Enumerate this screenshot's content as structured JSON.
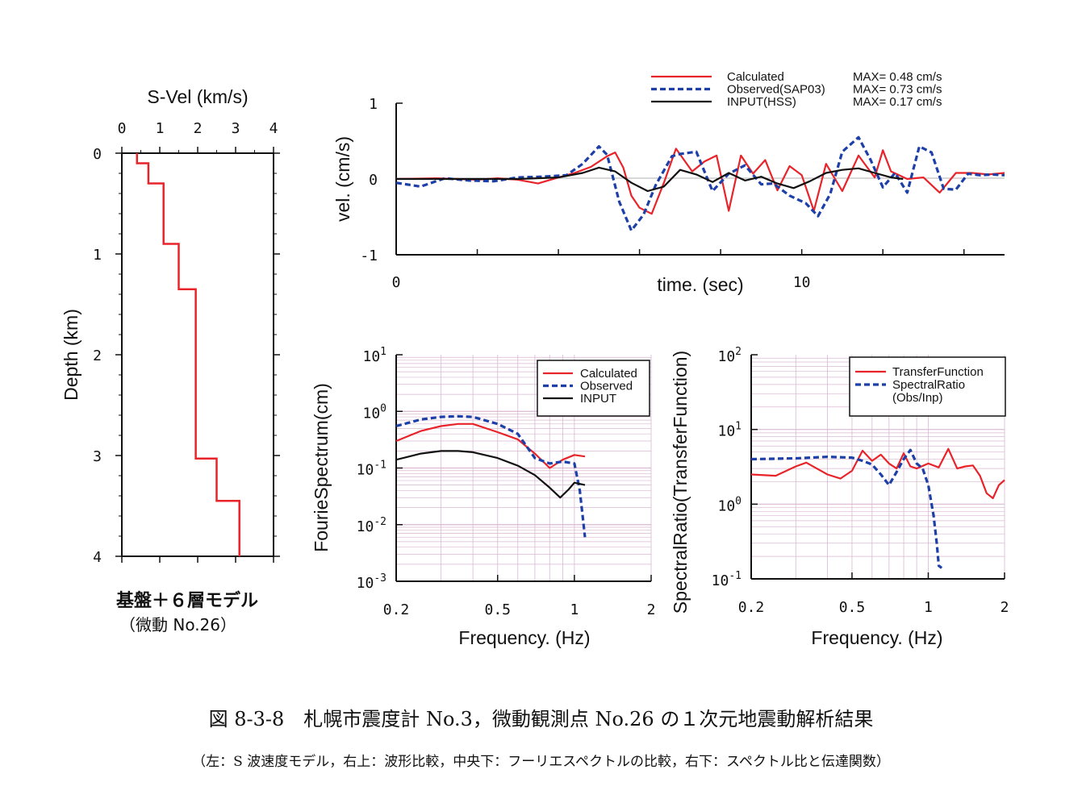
{
  "caption": {
    "main": "図 8-3-8　札幌市震度計 No.3，微動観測点 No.26 の１次元地震動解析結果",
    "sub": "（左：S 波速度モデル，右上：波形比較，中央下：フーリエスペクトルの比較，右下：スペクトル比と伝達関数）"
  },
  "model_label": {
    "title": "基盤＋６層モデル",
    "subtitle": "（微動 No.26）"
  },
  "colors": {
    "calculated": "#e8242b",
    "observed": "#1c3fa8",
    "input": "#111111",
    "grid": "#d9b8d2"
  },
  "chart_data": [
    {
      "id": "velocity-model",
      "type": "line",
      "xlabel": "S-Vel (km/s)",
      "ylabel": "Depth (km)",
      "xlim": [
        0,
        4
      ],
      "ylim": [
        0,
        4
      ],
      "xticks": [
        "0",
        "1",
        "2",
        "3",
        "4"
      ],
      "yticks": [
        "0",
        "1",
        "2",
        "3",
        "4"
      ],
      "y_inverted": true,
      "series": [
        {
          "steps": [
            {
              "vs": 0.4,
              "top": 0.0,
              "bottom": 0.1
            },
            {
              "vs": 0.7,
              "top": 0.1,
              "bottom": 0.3
            },
            {
              "vs": 1.1,
              "top": 0.3,
              "bottom": 0.9
            },
            {
              "vs": 1.5,
              "top": 0.9,
              "bottom": 1.35
            },
            {
              "vs": 1.95,
              "top": 1.35,
              "bottom": 3.03
            },
            {
              "vs": 2.5,
              "top": 3.03,
              "bottom": 3.45
            },
            {
              "vs": 3.1,
              "top": 3.45,
              "bottom": 4.0
            }
          ]
        }
      ]
    },
    {
      "id": "waveform",
      "type": "line",
      "xlabel": "time. (sec)",
      "ylabel": "vel. (cm/s)",
      "xlim": [
        0,
        15
      ],
      "ylim": [
        -1,
        1
      ],
      "xticks": [
        "0",
        "10"
      ],
      "yticks": [
        "1",
        "0",
        "-1"
      ],
      "legend": {
        "position": "top-right",
        "entries": [
          "Calculated",
          "Observed(SAP03)",
          "INPUT(HSS)"
        ],
        "max": [
          "MAX= 0.48 cm/s",
          "MAX= 0.73 cm/s",
          "MAX= 0.17 cm/s"
        ]
      },
      "series": [
        {
          "name": "Calculated",
          "color_key": "calculated",
          "style": "solid",
          "x": [
            0,
            1,
            2,
            2.5,
            3,
            3.5,
            4,
            4.4,
            4.8,
            5.2,
            5.4,
            5.6,
            5.8,
            6.0,
            6.3,
            6.6,
            6.9,
            7.3,
            7.6,
            7.9,
            8.2,
            8.5,
            8.8,
            9.1,
            9.4,
            9.7,
            10.0,
            10.3,
            10.6,
            11.0,
            11.4,
            11.8,
            12.0,
            12.2,
            12.6,
            13.0,
            13.4,
            13.8,
            14.2,
            14.6,
            15.0
          ],
          "y": [
            0,
            0.01,
            -0.01,
            0.01,
            -0.01,
            -0.06,
            0.02,
            0.08,
            0.16,
            0.3,
            0.35,
            0.15,
            -0.22,
            -0.38,
            -0.46,
            -0.05,
            0.4,
            0.1,
            0.23,
            0.31,
            -0.42,
            0.31,
            0.07,
            0.25,
            -0.15,
            0.17,
            0.05,
            -0.42,
            0.2,
            -0.16,
            0.31,
            0.02,
            0.38,
            0.1,
            0.0,
            0.02,
            -0.18,
            0.08,
            0.08,
            0.06,
            0.08
          ]
        },
        {
          "name": "Observed(SAP03)",
          "color_key": "observed",
          "style": "dashed",
          "x": [
            0,
            0.6,
            1.2,
            1.8,
            2.4,
            3.0,
            3.6,
            4.2,
            4.6,
            5.0,
            5.2,
            5.5,
            5.8,
            6.1,
            6.4,
            6.8,
            7.0,
            7.4,
            7.8,
            8.2,
            8.6,
            9.0,
            9.3,
            9.7,
            10.1,
            10.4,
            10.7,
            11.0,
            11.4,
            11.7,
            12.0,
            12.3,
            12.6,
            12.9,
            13.2,
            13.5,
            13.8,
            14.1,
            14.4,
            14.7,
            15.0
          ],
          "y": [
            -0.05,
            -0.1,
            0.01,
            -0.02,
            -0.03,
            0.02,
            0.03,
            0.05,
            0.2,
            0.43,
            0.32,
            -0.3,
            -0.68,
            -0.47,
            -0.08,
            0.3,
            0.33,
            0.36,
            -0.16,
            0.07,
            0.18,
            -0.07,
            -0.06,
            -0.22,
            -0.32,
            -0.49,
            -0.2,
            0.36,
            0.55,
            0.25,
            -0.11,
            0.08,
            -0.18,
            0.43,
            0.35,
            -0.13,
            -0.14,
            0.07,
            0.05,
            0.06,
            0.05
          ]
        },
        {
          "name": "INPUT(HSS)",
          "color_key": "input",
          "style": "solid",
          "x": [
            0,
            1,
            2,
            3,
            4,
            4.6,
            5.0,
            5.4,
            5.8,
            6.2,
            6.6,
            7.0,
            7.4,
            7.8,
            8.2,
            8.6,
            9.0,
            9.4,
            9.8,
            10.2,
            10.6,
            11.0,
            11.4,
            11.8,
            12.2,
            12.5
          ],
          "y": [
            0,
            0.0,
            0.0,
            0.0,
            0.02,
            0.08,
            0.15,
            0.1,
            -0.05,
            -0.16,
            -0.1,
            0.12,
            0.06,
            -0.04,
            0.08,
            -0.02,
            0.03,
            -0.06,
            -0.12,
            -0.03,
            0.08,
            0.12,
            0.14,
            0.08,
            0.02,
            0.0
          ]
        }
      ]
    },
    {
      "id": "fourier-spectrum",
      "type": "line",
      "xlabel": "Frequency. (Hz)",
      "ylabel": "FourieSpectrum(cm)",
      "x_scale": "log",
      "y_scale": "log",
      "xlim": [
        0.2,
        2
      ],
      "ylim": [
        0.001,
        10
      ],
      "xticks": [
        {
          "v": 0.2,
          "t": "0.2"
        },
        {
          "v": 0.5,
          "t": "0.5"
        },
        {
          "v": 1,
          "t": "1"
        },
        {
          "v": 2,
          "t": "2"
        }
      ],
      "yticks": [
        {
          "v": 10,
          "t": "10",
          "sup": "1"
        },
        {
          "v": 1,
          "t": "10",
          "sup": "0"
        },
        {
          "v": 0.1,
          "t": "10",
          "sup": "-1"
        },
        {
          "v": 0.01,
          "t": "10",
          "sup": "-2"
        },
        {
          "v": 0.001,
          "t": "10",
          "sup": "-3"
        }
      ],
      "legend": {
        "position": "top-right",
        "entries": [
          "Calculated",
          "Observed",
          "INPUT"
        ]
      },
      "series": [
        {
          "name": "Calculated",
          "color_key": "calculated",
          "style": "solid",
          "x": [
            0.2,
            0.25,
            0.3,
            0.35,
            0.4,
            0.5,
            0.6,
            0.7,
            0.8,
            0.9,
            1.0,
            1.1
          ],
          "y": [
            0.3,
            0.45,
            0.55,
            0.6,
            0.6,
            0.43,
            0.32,
            0.18,
            0.1,
            0.14,
            0.17,
            0.16
          ]
        },
        {
          "name": "Observed",
          "color_key": "observed",
          "style": "dashed",
          "x": [
            0.2,
            0.25,
            0.3,
            0.35,
            0.4,
            0.5,
            0.6,
            0.7,
            0.8,
            0.9,
            1.0,
            1.05,
            1.1
          ],
          "y": [
            0.55,
            0.72,
            0.8,
            0.82,
            0.8,
            0.6,
            0.4,
            0.15,
            0.12,
            0.13,
            0.12,
            0.04,
            0.006
          ]
        },
        {
          "name": "INPUT",
          "color_key": "input",
          "style": "solid",
          "x": [
            0.2,
            0.25,
            0.3,
            0.35,
            0.4,
            0.5,
            0.6,
            0.7,
            0.8,
            0.88,
            0.95,
            1.0,
            1.1
          ],
          "y": [
            0.14,
            0.18,
            0.2,
            0.2,
            0.19,
            0.15,
            0.11,
            0.075,
            0.045,
            0.03,
            0.042,
            0.055,
            0.05
          ]
        }
      ]
    },
    {
      "id": "spectral-ratio",
      "type": "line",
      "xlabel": "Frequency. (Hz)",
      "ylabel": "SpectralRatio(TransferFunction)",
      "x_scale": "log",
      "y_scale": "log",
      "xlim": [
        0.2,
        2
      ],
      "ylim": [
        0.1,
        100
      ],
      "xticks": [
        {
          "v": 0.2,
          "t": "0.2"
        },
        {
          "v": 0.5,
          "t": "0.5"
        },
        {
          "v": 1,
          "t": "1"
        },
        {
          "v": 2,
          "t": "2"
        }
      ],
      "yticks": [
        {
          "v": 100,
          "t": "10",
          "sup": "2"
        },
        {
          "v": 10,
          "t": "10",
          "sup": "1"
        },
        {
          "v": 1,
          "t": "10",
          "sup": "0"
        },
        {
          "v": 0.1,
          "t": "10",
          "sup": "-1"
        }
      ],
      "legend": {
        "position": "top-right",
        "entries": [
          "TransferFunction",
          "SpectralRatio",
          "(Obs/Inp)"
        ]
      },
      "series": [
        {
          "name": "TransferFunction",
          "color_key": "calculated",
          "style": "solid",
          "x": [
            0.2,
            0.25,
            0.3,
            0.33,
            0.4,
            0.45,
            0.5,
            0.55,
            0.6,
            0.65,
            0.7,
            0.75,
            0.8,
            0.85,
            0.9,
            1.0,
            1.1,
            1.2,
            1.3,
            1.4,
            1.5,
            1.6,
            1.7,
            1.8,
            1.9,
            2.0
          ],
          "y": [
            2.5,
            2.4,
            3.2,
            3.6,
            2.5,
            2.2,
            2.8,
            5.2,
            3.8,
            4.6,
            3.5,
            3.0,
            4.8,
            3.2,
            3.0,
            3.5,
            3.1,
            5.5,
            3.0,
            3.2,
            3.3,
            2.4,
            1.4,
            1.2,
            1.8,
            2.1
          ]
        },
        {
          "name": "SpectralRatio",
          "color_key": "observed",
          "style": "dashed",
          "x": [
            0.2,
            0.3,
            0.4,
            0.5,
            0.55,
            0.6,
            0.65,
            0.7,
            0.75,
            0.8,
            0.85,
            0.9,
            0.95,
            1.0,
            1.05,
            1.08,
            1.1,
            1.13
          ],
          "y": [
            4.0,
            4.1,
            4.3,
            4.2,
            3.8,
            3.4,
            2.5,
            1.8,
            2.7,
            4.0,
            5.3,
            3.5,
            3.0,
            1.8,
            0.7,
            0.3,
            0.15,
            0.14
          ]
        }
      ]
    }
  ]
}
